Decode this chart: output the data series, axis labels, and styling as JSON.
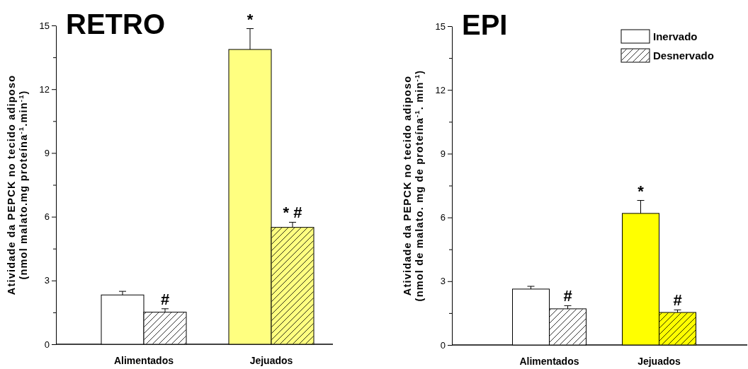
{
  "chart_data": [
    {
      "type": "bar",
      "title": "RETRO",
      "ylabel": "Atividade da PEPCK no tecido adiposo\n(nmol malato.mg proteína$^{-1}$.min$^{-1}$)",
      "categories": [
        "Alimentados",
        "Jejuados"
      ],
      "series": [
        {
          "colors": [
            "#ffffff",
            "#ffff80"
          ],
          "values": [
            2.32,
            13.87
          ],
          "errors": [
            [
              2.32,
              2.49
            ],
            [
              13.87,
              14.85
            ]
          ]
        },
        {
          "colors": [
            "#ffffff",
            "#ffff80"
          ],
          "values": [
            1.51,
            5.5
          ],
          "errors": [
            [
              1.51,
              1.67
            ],
            [
              5.5,
              5.74
            ]
          ]
        }
      ],
      "ylim": [
        0,
        15
      ],
      "yticks": [
        0,
        {
          "value": 1.5,
          "label": null
        },
        3,
        {
          "value": 4.5,
          "label": null
        },
        6,
        {
          "value": 7.5,
          "label": null
        },
        9,
        {
          "value": 10.5,
          "label": null
        },
        12,
        {
          "value": 13.5,
          "label": null
        },
        15
      ],
      "annotations": [
        {
          "text": "#",
          "x": "Alimentados",
          "y": 1.51
        },
        {
          "text": "*",
          "x": "Jejuados",
          "y": 13.87
        },
        {
          "text": "* #",
          "x": "Jejuados",
          "y": 5.5
        }
      ],
      "legend": false
    },
    {
      "type": "bar",
      "title": "EPI",
      "ylabel": "Atividade da PEPCK no tecido adiposo\n(nmol de malato. mg de proteína$^{-1}$. min$^{-1}$)",
      "categories": [
        "Alimentados",
        "Jejuados"
      ],
      "series": [
        {
          "name": "Inervado",
          "color": "#ffffff",
          "colors": [
            "#ffffff",
            "#ffff00"
          ],
          "values": [
            2.63,
            6.19
          ],
          "errors": [
            [
              2.63,
              2.76
            ],
            [
              6.19,
              6.8
            ]
          ]
        },
        {
          "name": "Desnervado",
          "color": "#ffffff",
          "colors": [
            "#ffffff",
            "#ffff00"
          ],
          "values": [
            1.7,
            1.53
          ],
          "errors": [
            [
              1.7,
              1.85
            ],
            [
              1.53,
              1.65
            ]
          ]
        }
      ],
      "ylim": [
        0,
        15
      ],
      "yticks": [
        0,
        {
          "value": 1.5,
          "label": null
        },
        3,
        {
          "value": 4.5,
          "label": null
        },
        6,
        {
          "value": 7.5,
          "label": null
        },
        9,
        {
          "value": 10.5,
          "label": null
        },
        12,
        {
          "value": 13.5,
          "label": null
        },
        15
      ],
      "annotations": [
        {
          "text": "#",
          "x": "Alimentados",
          "y": 1.7
        },
        {
          "text": "*",
          "x": "Jejuados",
          "y": 6.19
        },
        {
          "text": "#",
          "x": "Jejuados",
          "y": 1.53
        }
      ],
      "legend": "top right"
    }
  ]
}
